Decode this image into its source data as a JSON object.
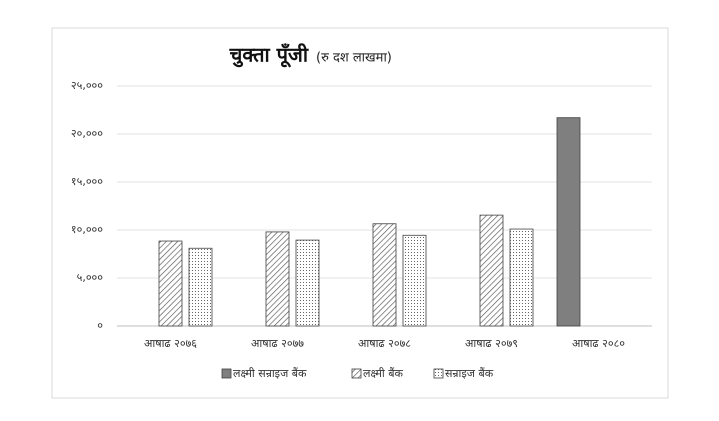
{
  "chart_data": {
    "type": "bar",
    "title": "चुक्ता पूँजी",
    "subtitle": "(रु दश लाखमा)",
    "categories": [
      "आषाढ २०७६",
      "आषाढ २०७७",
      "आषाढ २०७८",
      "आषाढ २०७९",
      "आषाढ २०८०"
    ],
    "series": [
      {
        "name": "लक्ष्मी सन्राइज बैंक",
        "color": "#7f7f7f",
        "fill": "solid",
        "values": [
          null,
          null,
          null,
          null,
          21700
        ]
      },
      {
        "name": "लक्ष्मी बैंक",
        "color": "#7f7f7f",
        "fill": "hatch",
        "values": [
          8850,
          9800,
          10650,
          11550,
          null
        ]
      },
      {
        "name": "सन्राइज बैंक",
        "color": "#7f7f7f",
        "fill": "dots",
        "values": [
          8100,
          8950,
          9450,
          10100,
          null
        ]
      }
    ],
    "ylim": [
      0,
      25000
    ],
    "yticks": [
      {
        "value": 0,
        "label": "०"
      },
      {
        "value": 5000,
        "label": "५,०००"
      },
      {
        "value": 10000,
        "label": "१०,०००"
      },
      {
        "value": 15000,
        "label": "१५,०००"
      },
      {
        "value": 20000,
        "label": "२०,०००"
      },
      {
        "value": 25000,
        "label": "२५,०००"
      }
    ],
    "grid": true,
    "legend": "bottom"
  }
}
